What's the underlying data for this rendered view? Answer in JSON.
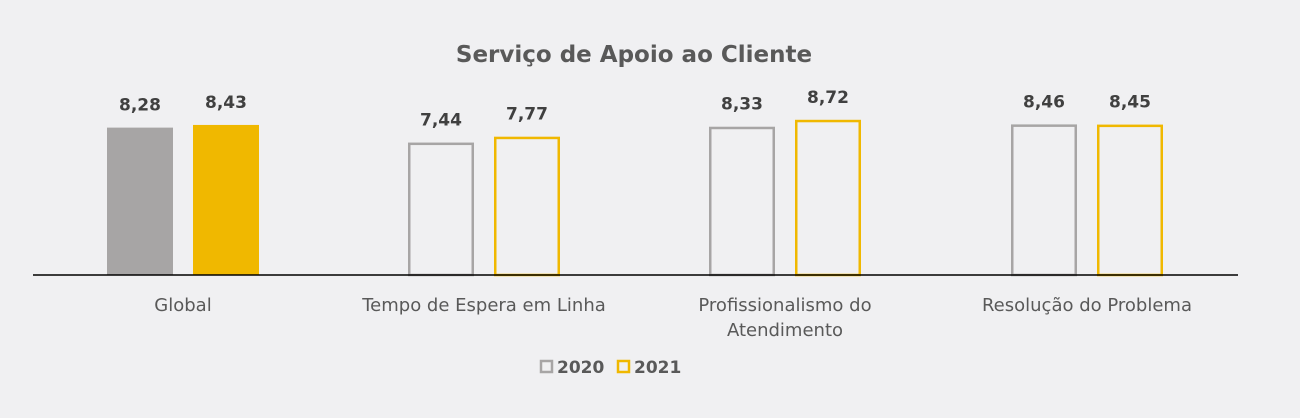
{
  "chart_data": {
    "type": "bar",
    "title": "Serviço de Apoio ao Cliente",
    "categories": [
      "Global",
      "Tempo de Espera em Linha",
      "Profissionalismo do Atendimento",
      "Resolução do Problema"
    ],
    "category_lines": [
      [
        "Global"
      ],
      [
        "Tempo de Espera em Linha"
      ],
      [
        "Profissionalismo do",
        "Atendimento"
      ],
      [
        "Resolução do Problema"
      ]
    ],
    "series": [
      {
        "name": "2020",
        "values": [
          8.28,
          7.44,
          8.33,
          8.46
        ],
        "labels": [
          "8,28",
          "7,44",
          "8,33",
          "8,46"
        ]
      },
      {
        "name": "2021",
        "values": [
          8.43,
          7.77,
          8.72,
          8.45
        ],
        "labels": [
          "8,43",
          "7,77",
          "8,72",
          "8,45"
        ]
      }
    ],
    "ylim": [
      0,
      10
    ],
    "xlabel": "",
    "ylabel": "",
    "grid": false,
    "legend_position": "bottom-center",
    "first_category_filled": true,
    "colors": {
      "2020": "#a7a5a5",
      "2021": "#f0b800",
      "text": "#595959",
      "label": "#404040",
      "axis": "#000000"
    }
  }
}
